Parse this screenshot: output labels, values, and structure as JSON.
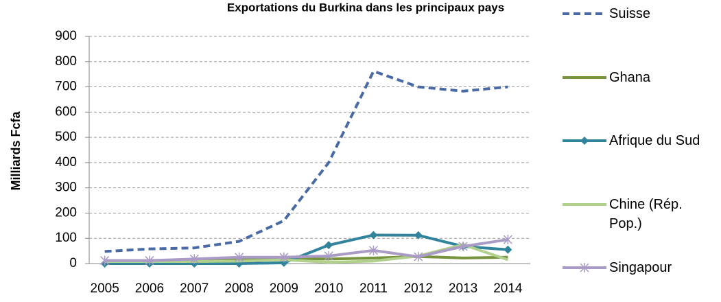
{
  "chart_data": {
    "type": "line",
    "title": "Exportations du Burkina dans les principaux pays",
    "y_label": "Milliards Fcfa",
    "categories": [
      "2005",
      "2006",
      "2007",
      "2008",
      "2009",
      "2010",
      "2011",
      "2012",
      "2013",
      "2014"
    ],
    "ylim": [
      0,
      900
    ],
    "yticks": [
      0,
      100,
      200,
      300,
      400,
      500,
      600,
      700,
      800,
      900
    ],
    "grid": true,
    "legend": "right",
    "series": [
      {
        "name": "Suisse",
        "color": "#4a6aa5",
        "dash": true,
        "marker": "none",
        "values": [
          48,
          58,
          62,
          88,
          170,
          400,
          762,
          700,
          683,
          700
        ]
      },
      {
        "name": "Ghana",
        "color": "#77933c",
        "marker": "none",
        "values": [
          10,
          10,
          12,
          15,
          20,
          18,
          22,
          28,
          22,
          25
        ]
      },
      {
        "name": "Afrique du Sud",
        "color": "#31849b",
        "marker": "diamond",
        "values": [
          0,
          0,
          0,
          0,
          3,
          73,
          113,
          112,
          68,
          55
        ]
      },
      {
        "name": "Chine (Rép. Pop.)",
        "color": "#b0d08c",
        "marker": "none",
        "values": [
          8,
          8,
          8,
          10,
          15,
          5,
          10,
          30,
          75,
          15
        ]
      },
      {
        "name": "Singapour",
        "color": "#a99ac6",
        "marker": "star",
        "values": [
          12,
          12,
          18,
          25,
          25,
          30,
          52,
          27,
          68,
          95
        ]
      }
    ]
  }
}
